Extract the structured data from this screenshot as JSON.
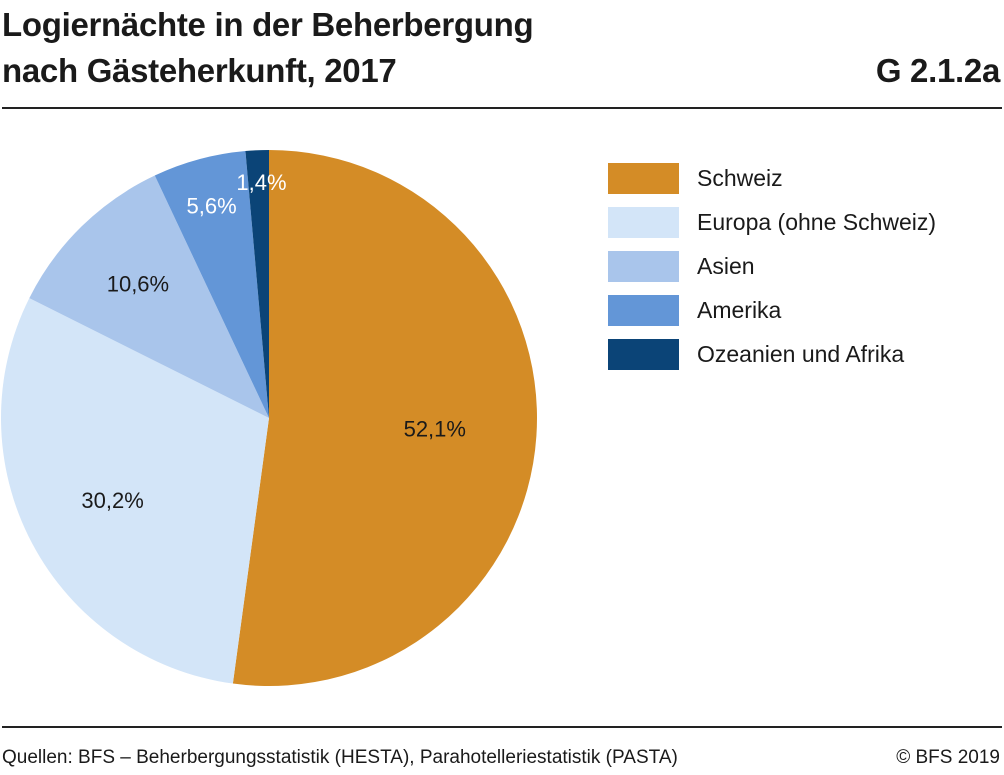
{
  "header": {
    "title_line1": "Logiernächte in der Beherbergung",
    "title_line2": "nach Gästeherkunft, 2017",
    "figure_number": "G 2.1.2a"
  },
  "footer": {
    "source": "Quellen: BFS – Beherbergungsstatistik (HESTA), Parahotelleriestatistik (PASTA)",
    "copyright": "© BFS 2019"
  },
  "chart_data": {
    "type": "pie",
    "categories": [
      "Schweiz",
      "Europa (ohne Schweiz)",
      "Asien",
      "Amerika",
      "Ozeanien und Afrika"
    ],
    "values": [
      52.1,
      30.2,
      10.6,
      5.6,
      1.4
    ],
    "value_labels": [
      "52,1%",
      "30,2%",
      "10,6%",
      "5,6%",
      "1,4%"
    ],
    "colors": [
      "#d48c26",
      "#d3e5f8",
      "#a9c5eb",
      "#6396d7",
      "#0b4477"
    ],
    "label_colors": [
      "#1a1a1a",
      "#1a1a1a",
      "#1a1a1a",
      "#ffffff",
      "#ffffff"
    ],
    "start_angle": "12 o'clock",
    "direction": "clockwise",
    "legend_position": "right"
  }
}
